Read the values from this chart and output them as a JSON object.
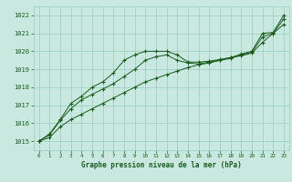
{
  "title": "Graphe pression niveau de la mer (hPa)",
  "bg_color": "#c8e8e0",
  "grid_color": "#99ccbb",
  "line_color": "#1a5c1a",
  "text_color": "#1a5c1a",
  "ylim": [
    1014.5,
    1022.5
  ],
  "xlim": [
    -0.5,
    23.5
  ],
  "yticks": [
    1015,
    1016,
    1017,
    1018,
    1019,
    1020,
    1021,
    1022
  ],
  "xticks": [
    0,
    1,
    2,
    3,
    4,
    5,
    6,
    7,
    8,
    9,
    10,
    11,
    12,
    13,
    14,
    15,
    16,
    17,
    18,
    19,
    20,
    21,
    22,
    23
  ],
  "line1_x": [
    0,
    1,
    2,
    3,
    4,
    5,
    6,
    7,
    8,
    9,
    10,
    11,
    12,
    13,
    14,
    15,
    16,
    17,
    18,
    19,
    20,
    21,
    22,
    23
  ],
  "line1_y": [
    1015.0,
    1015.4,
    1016.2,
    1017.1,
    1017.5,
    1018.0,
    1018.3,
    1018.8,
    1019.5,
    1019.8,
    1020.0,
    1020.0,
    1020.0,
    1019.8,
    1019.4,
    1019.4,
    1019.45,
    1019.55,
    1019.65,
    1019.85,
    1020.0,
    1021.0,
    1021.05,
    1022.0
  ],
  "line2_x": [
    0,
    1,
    2,
    3,
    4,
    5,
    6,
    7,
    8,
    9,
    10,
    11,
    12,
    13,
    14,
    15,
    16,
    17,
    18,
    19,
    20,
    21,
    22,
    23
  ],
  "line2_y": [
    1015.0,
    1015.2,
    1015.8,
    1016.2,
    1016.5,
    1016.8,
    1017.1,
    1017.4,
    1017.7,
    1018.0,
    1018.3,
    1018.5,
    1018.7,
    1018.9,
    1019.1,
    1019.25,
    1019.35,
    1019.5,
    1019.65,
    1019.75,
    1019.9,
    1020.5,
    1021.0,
    1021.5
  ],
  "line3_x": [
    0,
    1,
    2,
    3,
    4,
    5,
    6,
    7,
    8,
    9,
    10,
    11,
    12,
    13,
    14,
    15,
    16,
    17,
    18,
    19,
    20,
    21,
    22,
    23
  ],
  "line3_y": [
    1015.0,
    1015.35,
    1016.15,
    1016.8,
    1017.3,
    1017.6,
    1017.9,
    1018.2,
    1018.6,
    1019.0,
    1019.5,
    1019.7,
    1019.8,
    1019.5,
    1019.35,
    1019.3,
    1019.4,
    1019.5,
    1019.6,
    1019.8,
    1019.95,
    1020.8,
    1021.0,
    1021.8
  ]
}
